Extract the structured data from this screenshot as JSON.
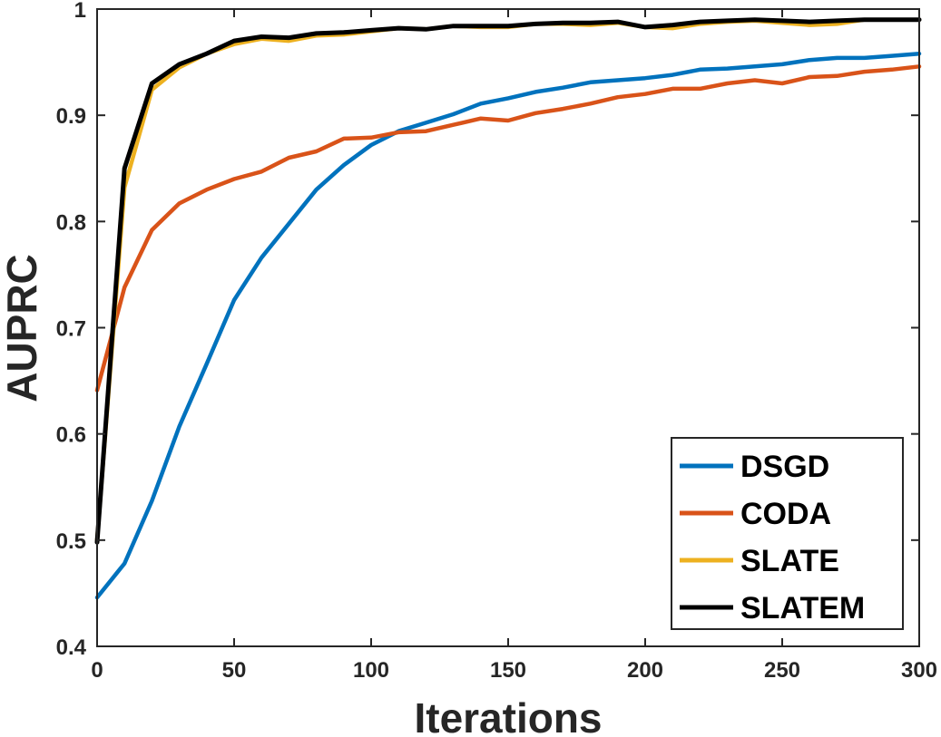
{
  "chart_data": {
    "type": "line",
    "title": "",
    "xlabel": "Iterations",
    "ylabel": "AUPRC",
    "xlim": [
      0,
      300
    ],
    "ylim": [
      0.4,
      1.0
    ],
    "xticks": [
      0,
      50,
      100,
      150,
      200,
      250,
      300
    ],
    "yticks": [
      0.4,
      0.5,
      0.6,
      0.7,
      0.8,
      0.9,
      1.0
    ],
    "xtick_labels": [
      "0",
      "50",
      "100",
      "150",
      "200",
      "250",
      "300"
    ],
    "ytick_labels": [
      "0.4",
      "0.5",
      "0.6",
      "0.7",
      "0.8",
      "0.9",
      "1"
    ],
    "grid": false,
    "legend_position": "bottom-right",
    "x": [
      0,
      10,
      20,
      30,
      40,
      50,
      60,
      70,
      80,
      90,
      100,
      110,
      120,
      130,
      140,
      150,
      160,
      170,
      180,
      190,
      200,
      210,
      220,
      230,
      240,
      250,
      260,
      270,
      280,
      290,
      300
    ],
    "series": [
      {
        "name": "DSGD",
        "color": "#0072BD",
        "values": [
          0.446,
          0.478,
          0.537,
          0.607,
          0.666,
          0.726,
          0.766,
          0.798,
          0.83,
          0.853,
          0.872,
          0.885,
          0.893,
          0.901,
          0.911,
          0.916,
          0.922,
          0.926,
          0.931,
          0.933,
          0.935,
          0.938,
          0.943,
          0.944,
          0.946,
          0.948,
          0.952,
          0.954,
          0.954,
          0.956,
          0.958
        ]
      },
      {
        "name": "CODA",
        "color": "#D95319",
        "values": [
          0.641,
          0.738,
          0.792,
          0.817,
          0.83,
          0.84,
          0.847,
          0.86,
          0.866,
          0.878,
          0.879,
          0.884,
          0.885,
          0.891,
          0.897,
          0.895,
          0.902,
          0.906,
          0.911,
          0.917,
          0.92,
          0.925,
          0.925,
          0.93,
          0.933,
          0.93,
          0.936,
          0.937,
          0.941,
          0.943,
          0.946
        ]
      },
      {
        "name": "SLATE",
        "color": "#EDB120",
        "values": [
          0.5,
          0.832,
          0.924,
          0.945,
          0.958,
          0.967,
          0.972,
          0.97,
          0.975,
          0.976,
          0.979,
          0.982,
          0.981,
          0.984,
          0.983,
          0.983,
          0.986,
          0.986,
          0.985,
          0.987,
          0.983,
          0.982,
          0.986,
          0.988,
          0.989,
          0.987,
          0.985,
          0.986,
          0.99,
          0.99,
          0.99
        ]
      },
      {
        "name": "SLATEM",
        "color": "#000000",
        "values": [
          0.498,
          0.85,
          0.93,
          0.948,
          0.958,
          0.97,
          0.974,
          0.973,
          0.977,
          0.978,
          0.98,
          0.982,
          0.981,
          0.984,
          0.984,
          0.984,
          0.986,
          0.987,
          0.987,
          0.988,
          0.983,
          0.985,
          0.988,
          0.989,
          0.99,
          0.989,
          0.988,
          0.989,
          0.99,
          0.99,
          0.99
        ]
      }
    ]
  }
}
